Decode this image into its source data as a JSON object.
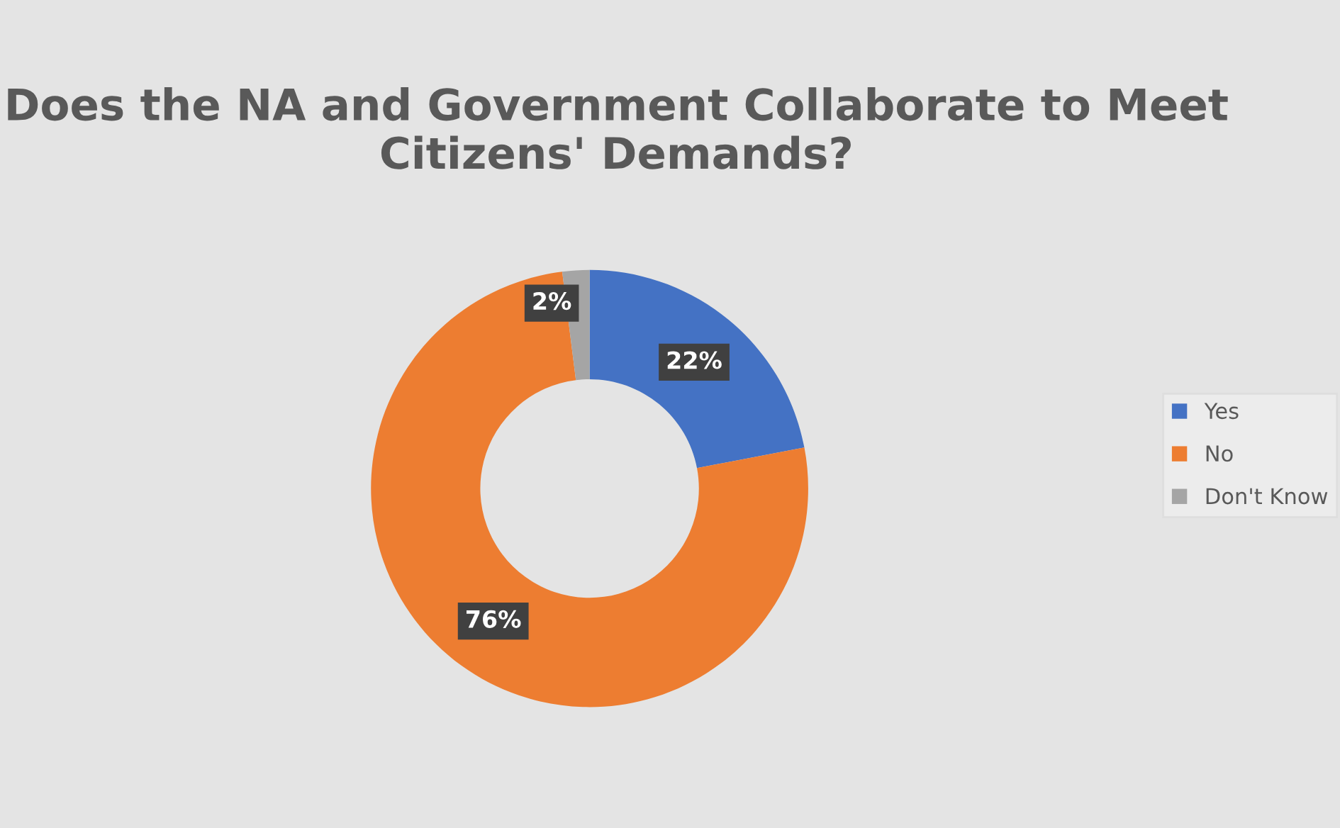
{
  "chart_data": {
    "type": "donut",
    "title": "Does the NA and Government Collaborate to Meet Citizens' Demands?",
    "categories": [
      "Yes",
      "No",
      "Don't Know"
    ],
    "values": [
      22,
      76,
      2
    ],
    "colors": [
      "#4472c4",
      "#ed7d31",
      "#a5a5a5"
    ],
    "value_labels": [
      "22%",
      "76%",
      "2%"
    ],
    "legend": "right"
  }
}
